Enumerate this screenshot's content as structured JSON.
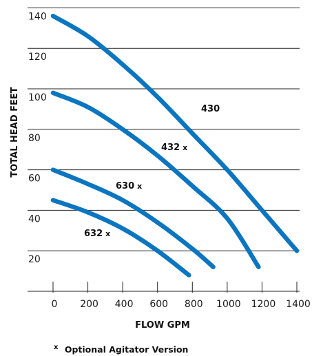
{
  "chart_data": {
    "type": "line",
    "xlabel": "FLOW GPM",
    "ylabel": "TOTAL HEAD FEET",
    "xlim": [
      0,
      1400
    ],
    "ylim": [
      0,
      145
    ],
    "x_ticks": [
      "0",
      "200",
      "400",
      "600",
      "800",
      "1000",
      "1200",
      "1400"
    ],
    "y_ticks": [
      "20",
      "40",
      "60",
      "80",
      "100",
      "120",
      "140"
    ],
    "grid": "horizontal",
    "line_color": "#0b75bf",
    "series": [
      {
        "name": "430",
        "label_main": "430",
        "label_mark": "",
        "x": [
          0,
          200,
          400,
          600,
          800,
          1000,
          1200,
          1400
        ],
        "y": [
          136,
          126,
          112,
          96,
          78,
          60,
          40,
          20
        ]
      },
      {
        "name": "432 x",
        "label_main": "432",
        "label_mark": "x",
        "x": [
          0,
          200,
          400,
          600,
          800,
          1000,
          1180
        ],
        "y": [
          98,
          91,
          80,
          67,
          52,
          36,
          12
        ]
      },
      {
        "name": "630x",
        "label_main": "630",
        "label_mark": "x",
        "x": [
          0,
          200,
          400,
          600,
          800,
          920
        ],
        "y": [
          60,
          53,
          45,
          34,
          21,
          12
        ]
      },
      {
        "name": "632 x",
        "label_main": "632",
        "label_mark": "x",
        "x": [
          0,
          200,
          400,
          600,
          780
        ],
        "y": [
          45,
          39,
          31,
          20,
          8
        ]
      }
    ],
    "footnote": {
      "marker": "x",
      "text": "Optional Agitator Version"
    }
  }
}
